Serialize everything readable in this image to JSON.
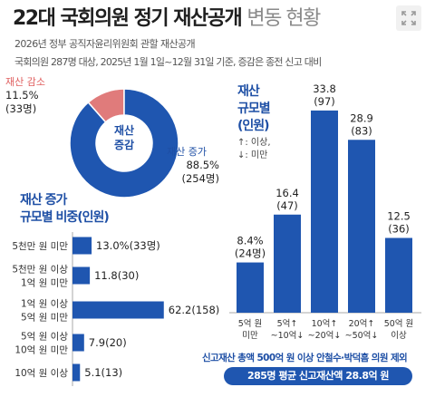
{
  "header": {
    "title_main": "22대 국회의원 정기 재산공개",
    "title_rest": "변동 현황",
    "line1": "2026년 정부 공직자윤리위원회 관할 재산공개",
    "line2": "국회의원 287명 대상, 2025년 1월 1일~12월 31일 기준, 증감은 종전 신고 대비"
  },
  "icons": {
    "expand": "expand-icon"
  },
  "colors": {
    "primary": "#1f56b0",
    "decrease": "#e07b7b",
    "accent_text": "#1e4fa5"
  },
  "donut": {
    "center_label_1": "재산",
    "center_label_2": "증감",
    "decrease": {
      "label": "재산 감소",
      "pct": "11.5%",
      "count": "(33명)",
      "value": 11.5
    },
    "increase": {
      "label": "재산 증가",
      "pct": "88.5%",
      "count": "(254명)",
      "value": 88.5
    }
  },
  "increase_section": {
    "title_line1": "재산 증가",
    "title_line2": "규모별 비중(인원)"
  },
  "people_section": {
    "title_line1": "재산",
    "title_line2": "규모별",
    "title_line3": "(인원)",
    "note_up": "↑: 이상,",
    "note_down": "↓: 미만"
  },
  "footer": {
    "note": "신고재산 총액 500억 원 이상 안철수·박덕흠 의원 제외",
    "pill": "285명 평균 신고재산액 28.8억 원"
  },
  "chart_data": [
    {
      "type": "pie",
      "title": "재산 증감",
      "categories": [
        "재산 감소",
        "재산 증가"
      ],
      "values": [
        11.5,
        88.5
      ],
      "counts": [
        33,
        254
      ]
    },
    {
      "type": "bar",
      "orientation": "horizontal",
      "title": "재산 증가 규모별 비중(인원)",
      "categories": [
        [
          "5천만 원 미만"
        ],
        [
          "5천만 원 이상",
          "1억 원 미만"
        ],
        [
          "1억 원 이상",
          "5억 원 미만"
        ],
        [
          "5억 원 이상",
          "10억 원 미만"
        ],
        [
          "10억 원 이상"
        ]
      ],
      "values": [
        13.0,
        11.8,
        62.2,
        7.9,
        5.1
      ],
      "counts": [
        33,
        30,
        158,
        20,
        13
      ],
      "labels": [
        "13.0%(33명)",
        "11.8(30)",
        "62.2(158)",
        "7.9(20)",
        "5.1(13)"
      ]
    },
    {
      "type": "bar",
      "orientation": "vertical",
      "title": "재산 규모별 (인원)",
      "categories": [
        [
          "5억 원",
          "미만"
        ],
        [
          "5억↑",
          "~10억↓"
        ],
        [
          "10억↑",
          "~20억↓"
        ],
        [
          "20억↑",
          "~50억↓"
        ],
        [
          "50억 원",
          "이상"
        ]
      ],
      "values": [
        8.4,
        16.4,
        33.8,
        28.9,
        12.5
      ],
      "counts": [
        24,
        47,
        97,
        83,
        36
      ],
      "value_labels": [
        "8.4%",
        "16.4",
        "33.8",
        "28.9",
        "12.5"
      ],
      "count_labels": [
        "(24명)",
        "(47)",
        "(97)",
        "(83)",
        "(36)"
      ]
    }
  ]
}
